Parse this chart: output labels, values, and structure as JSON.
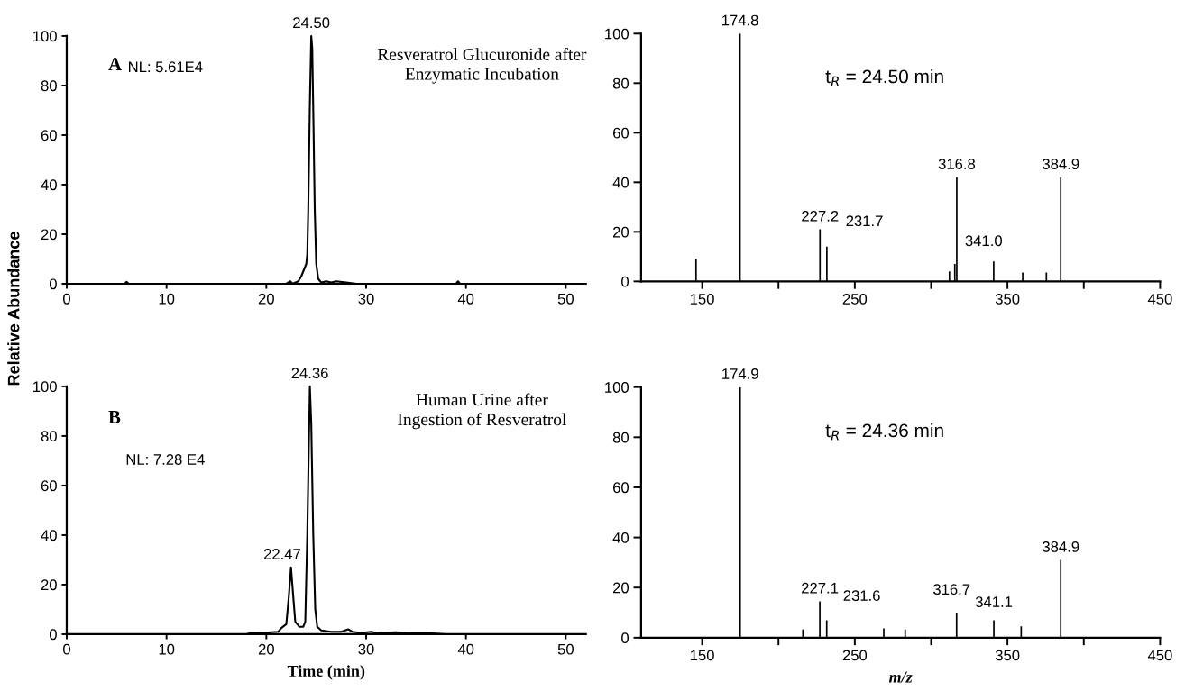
{
  "chart_data": [
    {
      "type": "line",
      "ylabel": "Relative Abundance",
      "xlim": [
        0,
        52
      ],
      "ylim": [
        0,
        100
      ],
      "xticks": [
        0,
        10,
        20,
        30,
        40,
        50
      ],
      "yticks": [
        0,
        20,
        40,
        60,
        80,
        100
      ],
      "series": [
        {
          "color": "#000000",
          "x": [
            0,
            5.8,
            6,
            6.2,
            17,
            22,
            22.4,
            22.6,
            23.2,
            23.5,
            23.8,
            24.0,
            24.1,
            24.2,
            24.35,
            24.5,
            24.6,
            24.7,
            24.85,
            25.0,
            25.2,
            25.5,
            26,
            26.5,
            27,
            28,
            29,
            39,
            39.2,
            39.4,
            52
          ],
          "values": [
            0,
            0,
            0.8,
            0,
            0,
            0,
            1,
            0,
            1,
            3,
            6,
            8,
            12,
            30,
            70,
            100,
            95,
            70,
            30,
            8,
            2,
            0.5,
            1,
            0.5,
            1,
            0.5,
            0,
            0,
            1,
            0,
            0
          ]
        }
      ],
      "annotations": [
        "A",
        "NL: 5.61E4",
        "Resveratrol Glucuronide after\nEnzymatic Incubation",
        {
          "text": "24.50",
          "x": 24.5,
          "y": 100
        }
      ]
    },
    {
      "type": "bar",
      "xlim": [
        110,
        450
      ],
      "ylim": [
        0,
        100
      ],
      "xticks": [
        150,
        {
          "value": 200,
          "label": null
        },
        250,
        {
          "value": 300,
          "label": null
        },
        350,
        {
          "value": 400,
          "label": null
        },
        450
      ],
      "yticks": [
        0,
        20,
        40,
        60,
        80,
        100
      ],
      "series": [
        {
          "color": "#000000",
          "x": [
            146,
            174.8,
            227.2,
            231.7,
            312,
            315.5,
            316.8,
            341.0,
            360,
            375.5,
            384.9
          ],
          "values": [
            9,
            100,
            21,
            14,
            4,
            7,
            42,
            8,
            3.6,
            3.6,
            42
          ]
        }
      ],
      "annotations": [
        "t$_{R}$ = 24.50 min",
        {
          "text": "174.8",
          "x": 174.8,
          "y": 100
        },
        {
          "text": "227.2",
          "x": 227.2,
          "y": 21
        },
        {
          "text": "231.7",
          "x": 231.7,
          "y": 14
        },
        {
          "text": "316.8",
          "x": 316.8,
          "y": 42
        },
        {
          "text": "341.0",
          "x": 341.0,
          "y": 8
        },
        {
          "text": "384.9",
          "x": 384.9,
          "y": 42
        }
      ]
    },
    {
      "type": "line",
      "xlabel": "Time (min)",
      "xlim": [
        0,
        52
      ],
      "ylim": [
        0,
        100
      ],
      "xticks": [
        0,
        10,
        20,
        30,
        40,
        50
      ],
      "yticks": [
        0,
        20,
        40,
        60,
        80,
        100
      ],
      "series": [
        {
          "color": "#000000",
          "x": [
            0,
            18,
            18.5,
            19.5,
            20.5,
            21.2,
            21.5,
            22,
            22.25,
            22.47,
            22.7,
            22.9,
            23.3,
            23.7,
            23.9,
            24.1,
            24.36,
            24.5,
            24.7,
            24.9,
            25.1,
            25.5,
            26.5,
            27.5,
            28.2,
            28.6,
            29.5,
            30.5,
            31,
            33,
            34,
            36,
            38,
            52
          ],
          "values": [
            0,
            0,
            0.5,
            0.3,
            0.8,
            1,
            2.5,
            4,
            15,
            27,
            15,
            5,
            3,
            3,
            5,
            40,
            100,
            85,
            40,
            10,
            3,
            1.5,
            1,
            1,
            2,
            1,
            0.5,
            1,
            0.5,
            0.8,
            0.5,
            0.5,
            0,
            0
          ]
        }
      ],
      "annotations": [
        "B",
        "NL: 7.28 E4",
        "Human Urine after\nIngestion of Resveratrol",
        {
          "text": "22.47",
          "x": 22.47,
          "y": 27
        },
        {
          "text": "24.36",
          "x": 24.36,
          "y": 100
        }
      ]
    },
    {
      "type": "bar",
      "xlabel": "m/z",
      "xlim": [
        110,
        450
      ],
      "ylim": [
        0,
        100
      ],
      "xticks": [
        150,
        {
          "value": 200,
          "label": null
        },
        250,
        {
          "value": 300,
          "label": null
        },
        350,
        {
          "value": 400,
          "label": null
        },
        450
      ],
      "yticks": [
        0,
        20,
        40,
        60,
        80,
        100
      ],
      "series": [
        {
          "color": "#000000",
          "x": [
            174.9,
            216,
            227.1,
            231.6,
            269,
            283,
            316.7,
            341.1,
            359,
            384.9
          ],
          "values": [
            100,
            3.3,
            14.5,
            7,
            3.7,
            3.3,
            10,
            7,
            4.5,
            31
          ]
        }
      ],
      "annotations": [
        "t$_{R}$ = 24.36 min",
        {
          "text": "174.9",
          "x": 174.9,
          "y": 100
        },
        {
          "text": "227.1",
          "x": 227.1,
          "y": 14.5
        },
        {
          "text": "231.6",
          "x": 231.6,
          "y": 7
        },
        {
          "text": "316.7",
          "x": 316.7,
          "y": 10
        },
        {
          "text": "341.1",
          "x": 341.1,
          "y": 7
        },
        {
          "text": "384.9",
          "x": 384.9,
          "y": 31
        }
      ]
    }
  ]
}
